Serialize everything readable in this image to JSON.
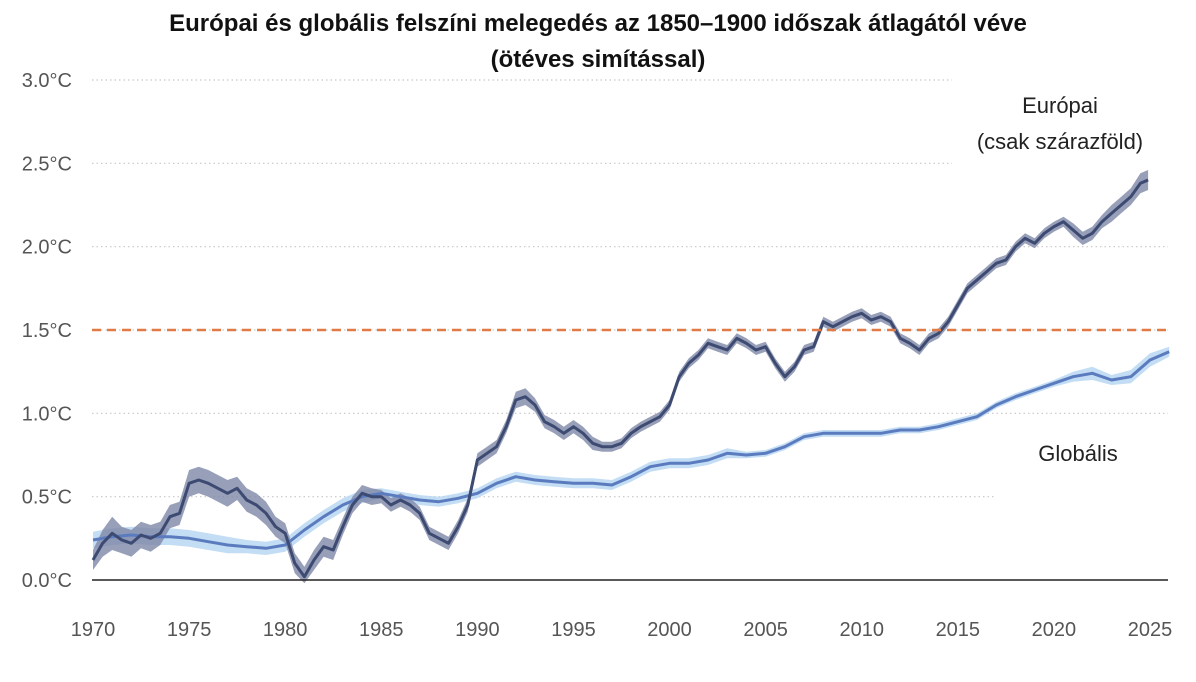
{
  "chart_data": {
    "type": "line",
    "title_line1": "Európai és globális felszíni melegedés az 1850–1900 időszak átlagától véve",
    "title_line2": "(ötéves simítással)",
    "xlabel": "",
    "ylabel": "",
    "xlim": [
      1970,
      2026
    ],
    "ylim": [
      0,
      3.0
    ],
    "x_ticks": [
      {
        "value": 1970,
        "label": "1970"
      },
      {
        "value": 1975,
        "label": "1975"
      },
      {
        "value": 1980,
        "label": "1980"
      },
      {
        "value": 1985,
        "label": "1985"
      },
      {
        "value": 1990,
        "label": "1990"
      },
      {
        "value": 1995,
        "label": "1995"
      },
      {
        "value": 2000,
        "label": "2000"
      },
      {
        "value": 2005,
        "label": "2005"
      },
      {
        "value": 2010,
        "label": "2010"
      },
      {
        "value": 2015,
        "label": "2015"
      },
      {
        "value": 2020,
        "label": "2020"
      },
      {
        "value": 2025,
        "label": "2025"
      }
    ],
    "y_ticks": [
      {
        "value": 0.0,
        "label": "0.0°C"
      },
      {
        "value": 0.5,
        "label": "0.5°C"
      },
      {
        "value": 1.0,
        "label": "1.0°C"
      },
      {
        "value": 1.5,
        "label": "1.5°C"
      },
      {
        "value": 2.0,
        "label": "2.0°C"
      },
      {
        "value": 2.5,
        "label": "2.5°C"
      },
      {
        "value": 3.0,
        "label": "3.0°C"
      }
    ],
    "grid": true,
    "reference_line": {
      "y": 1.5,
      "color": "#e07b45",
      "style": "dashed"
    },
    "series": [
      {
        "name": "Európai (csak szárazföld)",
        "label_line1": "Európai",
        "label_line2": "(csak szárazföld)",
        "color": "#3d4a72",
        "band_color": "#7e87a6",
        "x": [
          1970.0,
          1970.5,
          1971.0,
          1971.5,
          1972.0,
          1972.5,
          1973.0,
          1973.5,
          1974.0,
          1974.5,
          1975.0,
          1975.5,
          1976.0,
          1976.5,
          1977.0,
          1977.5,
          1978.0,
          1978.5,
          1979.0,
          1979.5,
          1980.0,
          1980.5,
          1981.0,
          1981.5,
          1982.0,
          1982.5,
          1983.0,
          1983.5,
          1984.0,
          1984.5,
          1985.0,
          1985.5,
          1986.0,
          1986.5,
          1987.0,
          1987.5,
          1988.0,
          1988.5,
          1989.0,
          1989.5,
          1990.0,
          1990.5,
          1991.0,
          1991.5,
          1992.0,
          1992.5,
          1993.0,
          1993.5,
          1994.0,
          1994.5,
          1995.0,
          1995.5,
          1996.0,
          1996.5,
          1997.0,
          1997.5,
          1998.0,
          1998.5,
          1999.0,
          1999.5,
          2000.0,
          2000.5,
          2001.0,
          2001.5,
          2002.0,
          2002.5,
          2003.0,
          2003.5,
          2004.0,
          2004.5,
          2005.0,
          2005.5,
          2006.0,
          2006.5,
          2007.0,
          2007.5,
          2008.0,
          2008.5,
          2009.0,
          2009.5,
          2010.0,
          2010.5,
          2011.0,
          2011.5,
          2012.0,
          2012.5,
          2013.0,
          2013.5,
          2014.0,
          2014.5,
          2015.0,
          2015.5,
          2016.0,
          2016.5,
          2017.0,
          2017.5,
          2018.0,
          2018.5,
          2019.0,
          2019.5,
          2020.0,
          2020.5,
          2021.0,
          2021.5,
          2022.0,
          2022.5,
          2023.0,
          2023.5,
          2024.0,
          2024.5,
          2024.9
        ],
        "values": [
          0.12,
          0.22,
          0.28,
          0.24,
          0.22,
          0.27,
          0.25,
          0.28,
          0.38,
          0.4,
          0.58,
          0.6,
          0.58,
          0.55,
          0.52,
          0.55,
          0.48,
          0.45,
          0.4,
          0.32,
          0.28,
          0.1,
          0.02,
          0.12,
          0.2,
          0.18,
          0.32,
          0.45,
          0.52,
          0.5,
          0.5,
          0.45,
          0.48,
          0.45,
          0.4,
          0.28,
          0.25,
          0.22,
          0.32,
          0.45,
          0.72,
          0.76,
          0.8,
          0.92,
          1.08,
          1.1,
          1.05,
          0.95,
          0.92,
          0.88,
          0.92,
          0.88,
          0.82,
          0.8,
          0.8,
          0.82,
          0.88,
          0.92,
          0.95,
          0.98,
          1.05,
          1.22,
          1.3,
          1.35,
          1.42,
          1.4,
          1.38,
          1.45,
          1.42,
          1.38,
          1.4,
          1.3,
          1.22,
          1.28,
          1.38,
          1.4,
          1.55,
          1.52,
          1.55,
          1.58,
          1.6,
          1.56,
          1.58,
          1.55,
          1.45,
          1.42,
          1.38,
          1.45,
          1.48,
          1.55,
          1.65,
          1.75,
          1.8,
          1.85,
          1.9,
          1.92,
          2.0,
          2.05,
          2.02,
          2.08,
          2.12,
          2.15,
          2.1,
          2.05,
          2.08,
          2.15,
          2.2,
          2.25,
          2.3,
          2.38,
          2.4
        ],
        "band_halfwidth": [
          0.06,
          0.08,
          0.1,
          0.08,
          0.08,
          0.08,
          0.08,
          0.07,
          0.07,
          0.07,
          0.08,
          0.08,
          0.08,
          0.08,
          0.08,
          0.07,
          0.07,
          0.07,
          0.07,
          0.06,
          0.06,
          0.06,
          0.06,
          0.06,
          0.06,
          0.06,
          0.05,
          0.05,
          0.05,
          0.05,
          0.04,
          0.04,
          0.04,
          0.04,
          0.04,
          0.04,
          0.04,
          0.04,
          0.04,
          0.04,
          0.04,
          0.04,
          0.04,
          0.04,
          0.05,
          0.05,
          0.04,
          0.04,
          0.04,
          0.04,
          0.04,
          0.04,
          0.04,
          0.03,
          0.03,
          0.03,
          0.03,
          0.03,
          0.03,
          0.03,
          0.03,
          0.03,
          0.03,
          0.03,
          0.03,
          0.03,
          0.03,
          0.03,
          0.03,
          0.03,
          0.03,
          0.03,
          0.03,
          0.03,
          0.03,
          0.03,
          0.03,
          0.03,
          0.03,
          0.03,
          0.03,
          0.03,
          0.03,
          0.03,
          0.03,
          0.03,
          0.03,
          0.03,
          0.03,
          0.03,
          0.03,
          0.03,
          0.03,
          0.03,
          0.03,
          0.03,
          0.03,
          0.03,
          0.03,
          0.03,
          0.03,
          0.03,
          0.04,
          0.04,
          0.04,
          0.04,
          0.05,
          0.05,
          0.05,
          0.06,
          0.06
        ]
      },
      {
        "name": "Globális",
        "label_line1": "Globális",
        "color": "#5b7bbf",
        "band_color": "#b9d7f2",
        "x": [
          1970,
          1971,
          1972,
          1973,
          1974,
          1975,
          1976,
          1977,
          1978,
          1979,
          1980,
          1981,
          1982,
          1983,
          1984,
          1985,
          1986,
          1987,
          1988,
          1989,
          1990,
          1991,
          1992,
          1993,
          1994,
          1995,
          1996,
          1997,
          1998,
          1999,
          2000,
          2001,
          2002,
          2003,
          2004,
          2005,
          2006,
          2007,
          2008,
          2009,
          2010,
          2011,
          2012,
          2013,
          2014,
          2015,
          2016,
          2017,
          2018,
          2019,
          2020,
          2021,
          2022,
          2023,
          2024,
          2025,
          2026
        ],
        "values": [
          0.24,
          0.26,
          0.27,
          0.26,
          0.26,
          0.25,
          0.23,
          0.21,
          0.2,
          0.19,
          0.21,
          0.3,
          0.38,
          0.45,
          0.5,
          0.52,
          0.5,
          0.48,
          0.47,
          0.49,
          0.52,
          0.58,
          0.62,
          0.6,
          0.59,
          0.58,
          0.58,
          0.57,
          0.62,
          0.68,
          0.7,
          0.7,
          0.72,
          0.76,
          0.75,
          0.76,
          0.8,
          0.86,
          0.88,
          0.88,
          0.88,
          0.88,
          0.9,
          0.9,
          0.92,
          0.95,
          0.98,
          1.05,
          1.1,
          1.14,
          1.18,
          1.22,
          1.24,
          1.2,
          1.22,
          1.32,
          1.37
        ],
        "band_halfwidth": [
          0.05,
          0.05,
          0.05,
          0.05,
          0.05,
          0.05,
          0.05,
          0.05,
          0.04,
          0.04,
          0.04,
          0.04,
          0.04,
          0.04,
          0.04,
          0.03,
          0.03,
          0.03,
          0.03,
          0.03,
          0.03,
          0.03,
          0.03,
          0.03,
          0.03,
          0.03,
          0.03,
          0.03,
          0.03,
          0.03,
          0.03,
          0.03,
          0.03,
          0.03,
          0.02,
          0.02,
          0.02,
          0.02,
          0.02,
          0.02,
          0.02,
          0.02,
          0.02,
          0.02,
          0.02,
          0.02,
          0.02,
          0.02,
          0.02,
          0.02,
          0.02,
          0.03,
          0.04,
          0.03,
          0.04,
          0.04,
          0.03
        ]
      }
    ]
  }
}
